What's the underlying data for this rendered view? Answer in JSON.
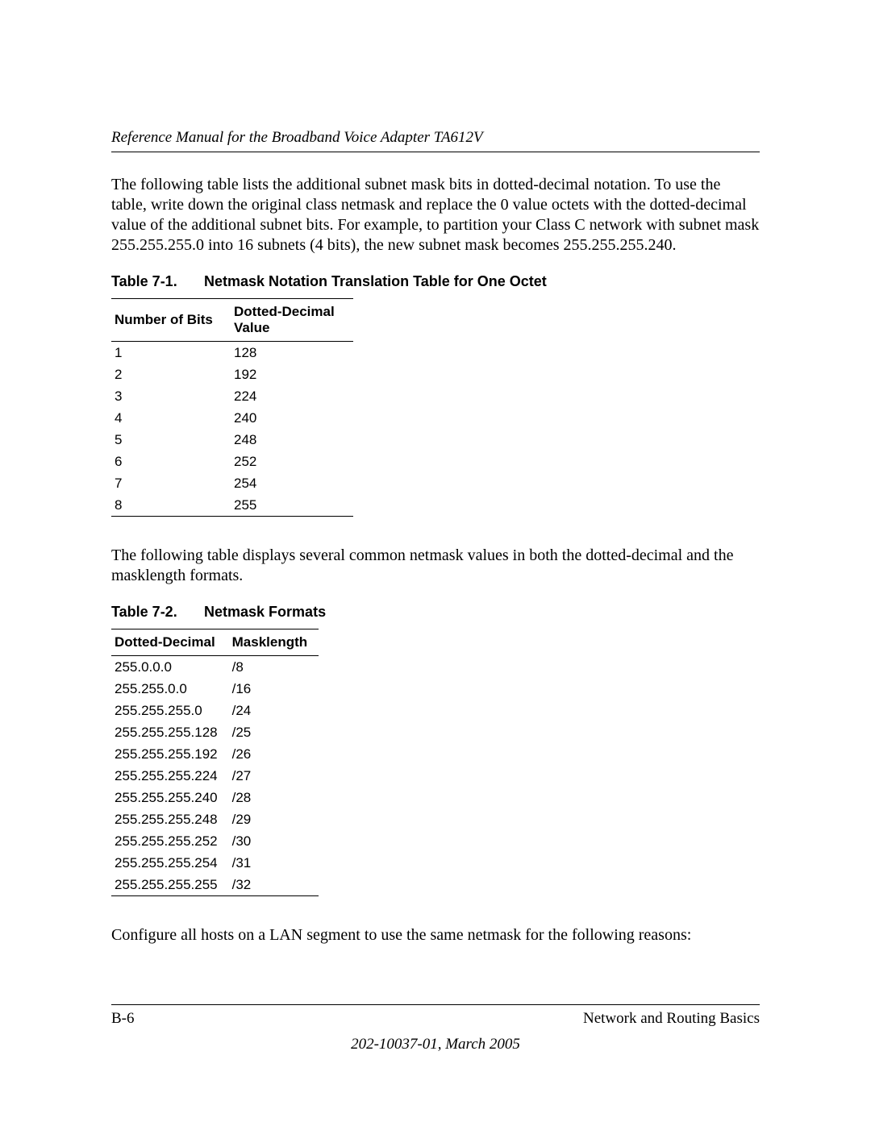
{
  "header": {
    "running_title": "Reference Manual for the Broadband Voice Adapter TA612V"
  },
  "paragraphs": {
    "intro": "The following table lists the additional subnet mask bits in dotted-decimal notation. To use the table, write down the original class netmask and replace the 0 value octets with the dotted-decimal value of the additional subnet bits. For example, to partition your Class C network with subnet mask 255.255.255.0 into 16 subnets (4 bits), the new subnet mask becomes 255.255.255.240.",
    "between": "The following table displays several common netmask values in both the dotted-decimal and the masklength formats.",
    "after": "Configure all hosts on a LAN segment to use the same netmask for the following reasons:"
  },
  "table1": {
    "number": "Table 7-1.",
    "title": "Netmask Notation Translation Table for One Octet",
    "columns": [
      "Number of Bits",
      "Dotted-Decimal Value"
    ],
    "rows": [
      [
        "1",
        "128"
      ],
      [
        "2",
        "192"
      ],
      [
        "3",
        "224"
      ],
      [
        "4",
        "240"
      ],
      [
        "5",
        "248"
      ],
      [
        "6",
        "252"
      ],
      [
        "7",
        "254"
      ],
      [
        "8",
        "255"
      ]
    ]
  },
  "table2": {
    "number": "Table 7-2.",
    "title": "Netmask Formats",
    "columns": [
      "Dotted-Decimal",
      "Masklength"
    ],
    "rows": [
      [
        "255.0.0.0",
        "/8"
      ],
      [
        "255.255.0.0",
        "/16"
      ],
      [
        "255.255.255.0",
        "/24"
      ],
      [
        "255.255.255.128",
        "/25"
      ],
      [
        "255.255.255.192",
        "/26"
      ],
      [
        "255.255.255.224",
        "/27"
      ],
      [
        "255.255.255.240",
        "/28"
      ],
      [
        "255.255.255.248",
        "/29"
      ],
      [
        "255.255.255.252",
        "/30"
      ],
      [
        "255.255.255.254",
        "/31"
      ],
      [
        "255.255.255.255",
        "/32"
      ]
    ]
  },
  "footer": {
    "page_number": "B-6",
    "section": "Network and Routing Basics",
    "docid": "202-10037-01, March 2005"
  }
}
